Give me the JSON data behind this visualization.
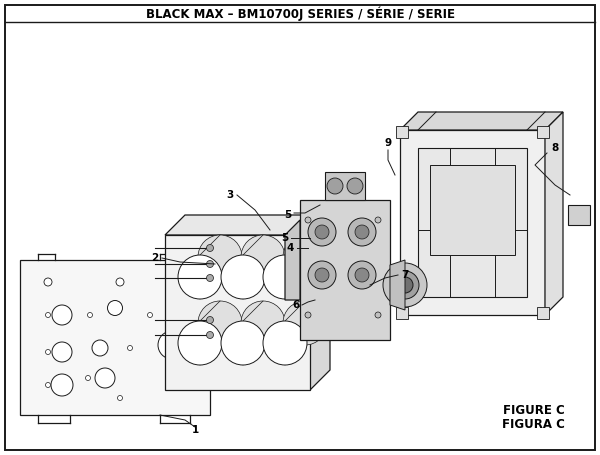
{
  "title": "BLACK MAX – BM10700J SERIES / SÉRIE / SERIE",
  "figure_label": "FIGURE C",
  "figura_label": "FIGURA C",
  "bg_color": "#ffffff",
  "line_color": "#1a1a1a",
  "title_fontsize": 8.5,
  "figure_fontsize": 9
}
